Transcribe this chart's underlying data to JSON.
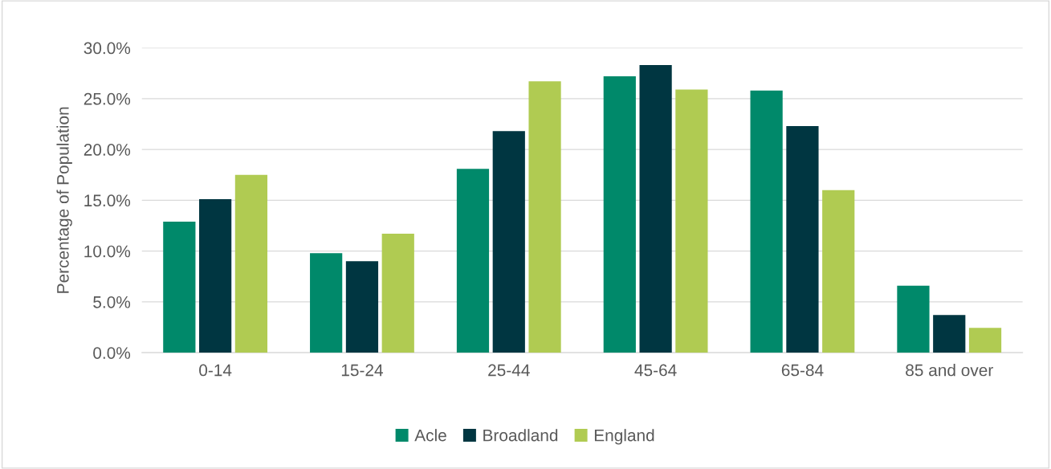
{
  "chart_data": {
    "type": "bar",
    "ylabel": "Percentage of Population",
    "categories": [
      "0-14",
      "15-24",
      "25-44",
      "45-64",
      "65-84",
      "85 and over"
    ],
    "series": [
      {
        "name": "Acle",
        "color": "#00896a",
        "values": [
          12.9,
          9.8,
          18.1,
          27.2,
          25.8,
          6.6
        ]
      },
      {
        "name": "Broadland",
        "color": "#003641",
        "values": [
          15.1,
          9.0,
          21.8,
          28.3,
          22.3,
          3.7
        ]
      },
      {
        "name": "England",
        "color": "#b0cb52",
        "values": [
          17.5,
          11.7,
          26.7,
          25.9,
          16.0,
          2.45
        ]
      }
    ],
    "ylim": [
      0,
      30
    ],
    "yticks": [
      {
        "value": 0,
        "label": "0.0%"
      },
      {
        "value": 5,
        "label": "5.0%"
      },
      {
        "value": 10,
        "label": "10.0%"
      },
      {
        "value": 15,
        "label": "15.0%"
      },
      {
        "value": 20,
        "label": "20.0%"
      },
      {
        "value": 25,
        "label": "25.0%"
      },
      {
        "value": 30,
        "label": "30.0%"
      }
    ],
    "grid": "y",
    "legend": "bottom"
  }
}
